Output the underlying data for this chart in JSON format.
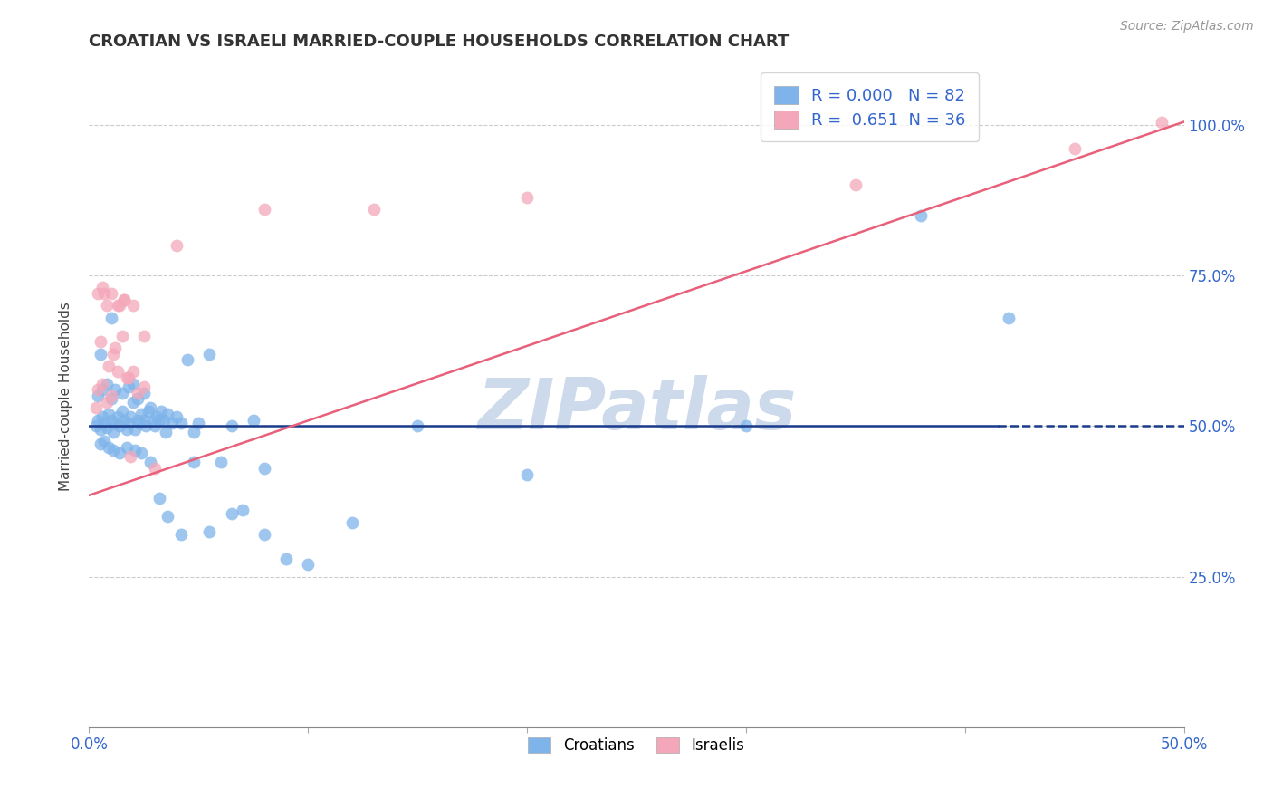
{
  "title": "CROATIAN VS ISRAELI MARRIED-COUPLE HOUSEHOLDS CORRELATION CHART",
  "source": "Source: ZipAtlas.com",
  "ylabel": "Married-couple Households",
  "xmin": 0.0,
  "xmax": 0.5,
  "ymin": 0.0,
  "ymax": 1.1,
  "xticks": [
    0.0,
    0.1,
    0.2,
    0.3,
    0.4,
    0.5
  ],
  "xtick_labels": [
    "0.0%",
    "",
    "",
    "",
    "",
    "50.0%"
  ],
  "yticks": [
    0.25,
    0.5,
    0.75,
    1.0
  ],
  "ytick_labels": [
    "25.0%",
    "50.0%",
    "75.0%",
    "100.0%"
  ],
  "croatian_color": "#7eb4ea",
  "israeli_color": "#f4a7b9",
  "trendline_croatian_color": "#1a3a8a",
  "trendline_israeli_color": "#e8607a",
  "watermark_color": "#ccdaec",
  "legend_r_croatian": "0.000",
  "legend_n_croatian": "82",
  "legend_r_israeli": "0.651",
  "legend_n_israeli": "36",
  "trendline_croatian_y": 0.5,
  "trendline_croatian_solid_end": 0.415,
  "trendline_israeli_x0": 0.0,
  "trendline_israeli_y0": 0.385,
  "trendline_israeli_x1": 0.5,
  "trendline_israeli_y1": 1.005,
  "croatian_x": [
    0.003,
    0.004,
    0.005,
    0.006,
    0.007,
    0.008,
    0.009,
    0.01,
    0.011,
    0.012,
    0.013,
    0.014,
    0.015,
    0.016,
    0.017,
    0.018,
    0.019,
    0.02,
    0.021,
    0.022,
    0.023,
    0.024,
    0.025,
    0.026,
    0.027,
    0.028,
    0.029,
    0.03,
    0.031,
    0.032,
    0.033,
    0.034,
    0.035,
    0.036,
    0.038,
    0.04,
    0.042,
    0.045,
    0.048,
    0.05,
    0.055,
    0.06,
    0.065,
    0.07,
    0.075,
    0.08,
    0.09,
    0.1,
    0.12,
    0.15,
    0.004,
    0.006,
    0.008,
    0.01,
    0.012,
    0.015,
    0.018,
    0.02,
    0.022,
    0.025,
    0.005,
    0.007,
    0.009,
    0.011,
    0.014,
    0.017,
    0.021,
    0.024,
    0.028,
    0.032,
    0.036,
    0.042,
    0.048,
    0.055,
    0.065,
    0.08,
    0.2,
    0.3,
    0.38,
    0.42,
    0.005,
    0.01
  ],
  "croatian_y": [
    0.5,
    0.51,
    0.495,
    0.515,
    0.505,
    0.498,
    0.52,
    0.51,
    0.49,
    0.505,
    0.515,
    0.5,
    0.525,
    0.51,
    0.495,
    0.505,
    0.515,
    0.54,
    0.495,
    0.51,
    0.505,
    0.52,
    0.51,
    0.5,
    0.525,
    0.53,
    0.51,
    0.5,
    0.515,
    0.51,
    0.525,
    0.51,
    0.49,
    0.52,
    0.505,
    0.515,
    0.505,
    0.61,
    0.49,
    0.505,
    0.62,
    0.44,
    0.5,
    0.36,
    0.51,
    0.32,
    0.28,
    0.27,
    0.34,
    0.5,
    0.55,
    0.56,
    0.57,
    0.545,
    0.56,
    0.555,
    0.565,
    0.57,
    0.545,
    0.555,
    0.47,
    0.475,
    0.465,
    0.46,
    0.455,
    0.465,
    0.46,
    0.455,
    0.44,
    0.38,
    0.35,
    0.32,
    0.44,
    0.325,
    0.355,
    0.43,
    0.42,
    0.5,
    0.85,
    0.68,
    0.62,
    0.68
  ],
  "israeli_x": [
    0.003,
    0.004,
    0.005,
    0.006,
    0.007,
    0.008,
    0.009,
    0.01,
    0.011,
    0.012,
    0.013,
    0.014,
    0.015,
    0.016,
    0.017,
    0.018,
    0.019,
    0.02,
    0.022,
    0.025,
    0.004,
    0.006,
    0.008,
    0.01,
    0.013,
    0.016,
    0.02,
    0.025,
    0.03,
    0.04,
    0.08,
    0.13,
    0.2,
    0.35,
    0.45,
    0.49
  ],
  "israeli_y": [
    0.53,
    0.56,
    0.64,
    0.57,
    0.72,
    0.54,
    0.6,
    0.55,
    0.62,
    0.63,
    0.59,
    0.7,
    0.65,
    0.71,
    0.58,
    0.58,
    0.45,
    0.59,
    0.555,
    0.565,
    0.72,
    0.73,
    0.7,
    0.72,
    0.7,
    0.71,
    0.7,
    0.65,
    0.43,
    0.8,
    0.86,
    0.86,
    0.88,
    0.9,
    0.96,
    1.005
  ]
}
